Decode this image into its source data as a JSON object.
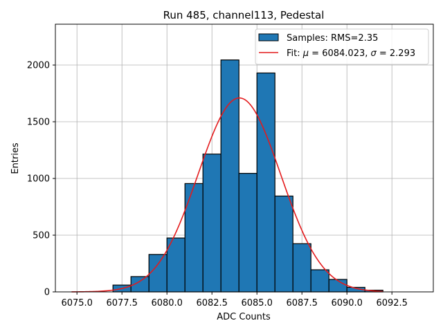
{
  "chart_data": {
    "type": "bar",
    "title": "Run 485, channel113, Pedestal",
    "xlabel": "ADC Counts",
    "ylabel": "Entries",
    "xlim": [
      6073.8,
      6094.8
    ],
    "ylim": [
      0,
      2360
    ],
    "xticks": [
      6075.0,
      6077.5,
      6080.0,
      6082.5,
      6085.0,
      6087.5,
      6090.0,
      6092.5
    ],
    "xtick_labels": [
      "6075.0",
      "6077.5",
      "6080.0",
      "6082.5",
      "6085.0",
      "6087.5",
      "6090.0",
      "6092.5"
    ],
    "yticks": [
      0,
      500,
      1000,
      1500,
      2000
    ],
    "ytick_labels": [
      "0",
      "500",
      "1000",
      "1500",
      "2000"
    ],
    "grid": true,
    "legend_position": "top-right",
    "histogram": {
      "name": "Samples: RMS=2.35",
      "color": "#1f77b4",
      "edge_color": "#000000",
      "bins": [
        {
          "x0": 6077,
          "x1": 6078,
          "value": 60
        },
        {
          "x0": 6078,
          "x1": 6079,
          "value": 135
        },
        {
          "x0": 6079,
          "x1": 6080,
          "value": 330
        },
        {
          "x0": 6080,
          "x1": 6081,
          "value": 475
        },
        {
          "x0": 6081,
          "x1": 6082,
          "value": 955
        },
        {
          "x0": 6082,
          "x1": 6083,
          "value": 1215
        },
        {
          "x0": 6083,
          "x1": 6084,
          "value": 2045
        },
        {
          "x0": 6084,
          "x1": 6085,
          "value": 1045
        },
        {
          "x0": 6085,
          "x1": 6086,
          "value": 1930
        },
        {
          "x0": 6086,
          "x1": 6087,
          "value": 845
        },
        {
          "x0": 6087,
          "x1": 6088,
          "value": 425
        },
        {
          "x0": 6088,
          "x1": 6089,
          "value": 195
        },
        {
          "x0": 6089,
          "x1": 6090,
          "value": 110
        },
        {
          "x0": 6090,
          "x1": 6091,
          "value": 40
        },
        {
          "x0": 6091,
          "x1": 6092,
          "value": 15
        }
      ]
    },
    "fit": {
      "name_prefix": "Fit: ",
      "mu_symbol": "μ",
      "sigma_symbol": "σ",
      "mu_text": " = 6084.023, ",
      "sigma_text": " = 2.293",
      "mu": 6084.023,
      "sigma": 2.293,
      "amplitude": 1710,
      "x_range": [
        6074.7,
        6092.0
      ],
      "color": "#e41a1c"
    }
  }
}
